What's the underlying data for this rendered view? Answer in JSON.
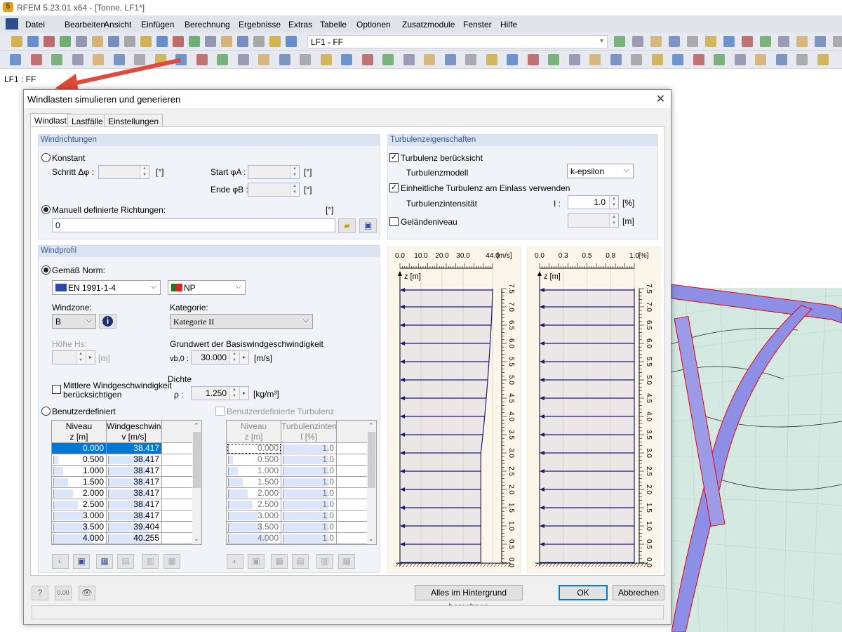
{
  "app": {
    "title": "RFEM 5.23.01 x64 - [Tonne, LF1*]"
  },
  "menu": [
    "Datei",
    "Bearbeiten",
    "Ansicht",
    "Einfügen",
    "Berechnung",
    "Ergebnisse",
    "Extras",
    "Tabelle",
    "Optionen",
    "Zusatzmodule",
    "Fenster",
    "Hilfe"
  ],
  "toolbar": {
    "loadcase_combo": "LF1 - FF",
    "row1_icons": [
      "new-file-icon",
      "open-folder-icon",
      "archive-icon",
      "database-icon",
      "save-icon",
      "clipboard-icon",
      "print-icon",
      "print-preview-icon",
      "undo-icon",
      "redo-icon",
      "calculate-icon",
      "results-icon",
      "target-icon",
      "show-load-icon",
      "window-icon",
      "table-icon",
      "grid-icon",
      "new-loadcase-icon"
    ],
    "row1_right_icons": [
      "previous-icon",
      "next-icon",
      "show-results-icon",
      "values-icon",
      "view-icon",
      "values-gray-icon",
      "deform-icon",
      "panel-icon",
      "panel2-icon",
      "hand-icon",
      "node-icon",
      "axis-icon",
      "view-active-icon"
    ],
    "row2_icons": [
      "node-icon",
      "line-icon",
      "member-icon",
      "support-icon",
      "hinge-icon",
      "node-load-icon",
      "surface-icon",
      "dimension-icon",
      "comment-icon",
      "guide-icon",
      "surface-new-icon",
      "solid-icon",
      "opening-icon",
      "block-icon",
      "loadcase-icon",
      "load-icon",
      "table1-icon",
      "table2-icon",
      "table3-icon",
      "nodal-icon",
      "pan-icon",
      "zoom-icon",
      "zoom-all-icon",
      "box-icon",
      "iso-icon",
      "view-x-icon",
      "view-y-icon",
      "view-z-icon",
      "view-iso-icon",
      "section-icon",
      "render-icon",
      "frame-icon",
      "dim-icon",
      "surface-result-icon",
      "solid-result-icon",
      "arrow-icon",
      "line-result-icon",
      "color-icon",
      "result-line-icon",
      "tables-icon"
    ]
  },
  "workspace": {
    "label": "LF1 : FF"
  },
  "dialog": {
    "title": "Windlasten simulieren und generieren",
    "tabs": [
      "Windlast",
      "Lastfälle",
      "Einstellungen"
    ],
    "windrichtungen": {
      "header": "Windrichtungen",
      "konstant": "Konstant",
      "schritt_label": "Schritt Δφ :",
      "start_label": "Start φA :",
      "ende_label": "Ende φB :",
      "unit_deg": "[°]",
      "manuell": "Manuell definierte Richtungen:",
      "manuell_value": "0",
      "selected": "manuell"
    },
    "windprofil": {
      "header": "Windprofil",
      "gemaess_norm": "Gemäß Norm:",
      "norm": "EN 1991-1-4",
      "annex": "NP",
      "windzone_label": "Windzone:",
      "windzone": "B",
      "kategorie_label": "Kategorie:",
      "kategorie": "Kategorie II",
      "hoehe_label": "Höhe Hs:",
      "unit_m": "[m]",
      "grundwert_label": "Grundwert der Basiswindgeschwindigkeit",
      "vb0_label": "vb,0 :",
      "vb0": "30.000",
      "unit_ms": "[m/s]",
      "dichte_label": "Dichte",
      "rho_label": "ρ :",
      "rho": "1.250",
      "unit_kgm3": "[kg/m³]",
      "mittlere_line1": "Mittlere Windgeschwindigkeit",
      "mittlere_line2": "berücksichtigen",
      "mittlere_checked": false,
      "benutzerdefiniert": "Benutzerdefiniert",
      "benutzer_turbulenz": "Benutzerdefinierte Turbulenz"
    },
    "wind_table": {
      "headers": [
        [
          "Niveau",
          "z [m]"
        ],
        [
          "Windgeschwindi",
          "v [m/s]"
        ]
      ],
      "rows": [
        [
          "0.000",
          "38.417"
        ],
        [
          "0.500",
          "38.417"
        ],
        [
          "1.000",
          "38.417"
        ],
        [
          "1.500",
          "38.417"
        ],
        [
          "2.000",
          "38.417"
        ],
        [
          "2.500",
          "38.417"
        ],
        [
          "3.000",
          "38.417"
        ],
        [
          "3.500",
          "39.404"
        ],
        [
          "4.000",
          "40.255"
        ]
      ]
    },
    "turb_table": {
      "headers": [
        [
          "Niveau",
          "z [m]"
        ],
        [
          "Turbulenzintensität",
          "I [%]"
        ]
      ],
      "rows": [
        [
          "0.000",
          "1.0"
        ],
        [
          "0.500",
          "1.0"
        ],
        [
          "1.000",
          "1.0"
        ],
        [
          "1.500",
          "1.0"
        ],
        [
          "2.000",
          "1.0"
        ],
        [
          "2.500",
          "1.0"
        ],
        [
          "3.000",
          "1.0"
        ],
        [
          "3.500",
          "1.0"
        ],
        [
          "4.000",
          "1.0"
        ]
      ]
    },
    "turbulenz": {
      "header": "Turbulenzeigenschaften",
      "beruecksicht": "Turbulenz berücksicht",
      "beruecksicht_checked": true,
      "modell_label": "Turbulenzmodell",
      "modell": "k-epsilon",
      "einheitlich": "Einheitliche Turbulenz am Einlass verwenden",
      "einheitlich_checked": true,
      "intensitaet_label": "Turbulenzintensität",
      "i_label": "I :",
      "intensitaet": "1.0",
      "unit_pct": "[%]",
      "gelaende": "Geländeniveau",
      "gelaende_checked": false,
      "unit_m": "[m]"
    },
    "buttons": {
      "background": "Alles im Hintergrund berechnen",
      "ok": "OK",
      "cancel": "Abbrechen"
    }
  },
  "chart_data": [
    {
      "type": "line",
      "xlabel_unit": "[m/s]",
      "ylabel": "z [m]",
      "xlim": [
        0,
        44
      ],
      "ylim": [
        0,
        7.5
      ],
      "xticks": [
        {
          "v": 0,
          "l": "0.0"
        },
        {
          "v": 10,
          "l": "10.0"
        },
        {
          "v": 20,
          "l": "20.0"
        },
        {
          "v": 30,
          "l": "30.0"
        },
        {
          "v": 44,
          "l": "44.0"
        }
      ],
      "yticks": [
        "0.0",
        "0.5",
        "1.0",
        "1.5",
        "2.0",
        "2.5",
        "3.0",
        "3.5",
        "4.0",
        "4.5",
        "5.0",
        "5.5",
        "6.0",
        "6.5",
        "7.0",
        "7.5"
      ],
      "z": [
        0,
        0.5,
        1,
        1.5,
        2,
        2.5,
        3,
        3.5,
        4,
        4.5,
        5,
        5.5,
        6,
        6.5,
        7,
        7.5
      ],
      "values": [
        38.417,
        38.417,
        38.417,
        38.417,
        38.417,
        38.417,
        38.417,
        39.404,
        40.255,
        41.0,
        41.7,
        42.3,
        42.85,
        43.35,
        43.75,
        44.0
      ]
    },
    {
      "type": "line",
      "xlabel_unit": "[%]",
      "ylabel": "z [m]",
      "xlim": [
        0,
        1.0
      ],
      "ylim": [
        0,
        7.5
      ],
      "xticks": [
        {
          "v": 0,
          "l": "0.0"
        },
        {
          "v": 0.25,
          "l": "0.3"
        },
        {
          "v": 0.5,
          "l": "0.5"
        },
        {
          "v": 0.75,
          "l": "0.8"
        },
        {
          "v": 1.0,
          "l": "1.0"
        }
      ],
      "yticks": [
        "0.0",
        "0.5",
        "1.0",
        "1.5",
        "2.0",
        "2.5",
        "3.0",
        "3.5",
        "4.0",
        "4.5",
        "5.0",
        "5.5",
        "6.0",
        "6.5",
        "7.0",
        "7.5"
      ],
      "z": [
        0,
        0.5,
        1,
        1.5,
        2,
        2.5,
        3,
        3.5,
        4,
        4.5,
        5,
        5.5,
        6,
        6.5,
        7,
        7.5
      ],
      "values": [
        1,
        1,
        1,
        1,
        1,
        1,
        1,
        1,
        1,
        1,
        1,
        1,
        1,
        1,
        1,
        1
      ]
    }
  ],
  "colors": {
    "selected_row": "#0078d7",
    "profile_line": "#1a1a7a",
    "arrow_annotation": "#e04a3a",
    "group_header": "#dae4f2"
  }
}
